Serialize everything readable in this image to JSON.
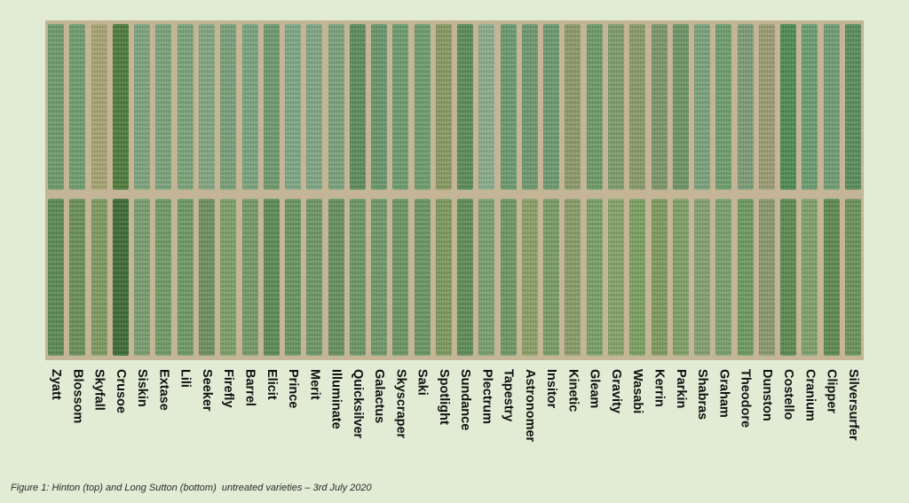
{
  "varieties": [
    "Zyatt",
    "Blossom",
    "Skyfall",
    "Crusoe",
    "Siskin",
    "Extase",
    "Lili",
    "Seeker",
    "Firefly",
    "Barrel",
    "Elicit",
    "Prince",
    "Merit",
    "Illuminate",
    "Quicksilver",
    "Galactus",
    "Skyscraper",
    "Saki",
    "Spotlight",
    "Sundance",
    "Plectrum",
    "Tapestry",
    "Astronomer",
    "Insitor",
    "Kinetic",
    "Gleam",
    "Gravity",
    "Wasabi",
    "Kerrin",
    "Parkin",
    "Shabras",
    "Graham",
    "Theodore",
    "Dunston",
    "Costello",
    "Cranium",
    "Clipper",
    "Silversurfer"
  ],
  "caption": "Figure 1: Hinton (top) and Long Sutton (bottom)  untreated varieties – 3rd July 2020",
  "top_field_colors": [
    "#6f9a6c",
    "#719c6e",
    "#a8a474",
    "#4d7c3a",
    "#7ea47d",
    "#7aa37a",
    "#7aa47a",
    "#84a682",
    "#7aa079",
    "#7aa47d",
    "#6f9a6e",
    "#7ea884",
    "#82a684",
    "#7aa27c",
    "#5f8c5f",
    "#6a976a",
    "#6d9c6e",
    "#6f9d6f",
    "#8a9a64",
    "#5d8b58",
    "#8aac8c",
    "#6d9a6e",
    "#6f9870",
    "#6d9a6e",
    "#8e9a6c",
    "#6f9a68",
    "#7e9d6b",
    "#8a9a6a",
    "#7d9669",
    "#6e9567",
    "#7aa27c",
    "#6f9e6d",
    "#7c9d78",
    "#9c9c74",
    "#4f8a55",
    "#6a9c72",
    "#6f9e73",
    "#5a8c5c"
  ],
  "bottom_field_colors": [
    "#5c8a52",
    "#6a9059",
    "#7d9a62",
    "#3e6a36",
    "#7a9e70",
    "#729a66",
    "#6e9a62",
    "#6f8f60",
    "#7ca066",
    "#769a67",
    "#5e8a55",
    "#6a9560",
    "#6f9767",
    "#669060",
    "#6b9765",
    "#6e9968",
    "#6c9664",
    "#6a9663",
    "#7d9a5e",
    "#5f8c58",
    "#7aa070",
    "#6e9866",
    "#8aa067",
    "#7a9c66",
    "#8a9c66",
    "#7aa068",
    "#86a26a",
    "#7ca062",
    "#7e9a60",
    "#80a066",
    "#86a070",
    "#7aa06e",
    "#6f9a60",
    "#8a9a6e",
    "#5c8a50",
    "#7ea26c",
    "#5e8a4f",
    "#6a9458"
  ]
}
